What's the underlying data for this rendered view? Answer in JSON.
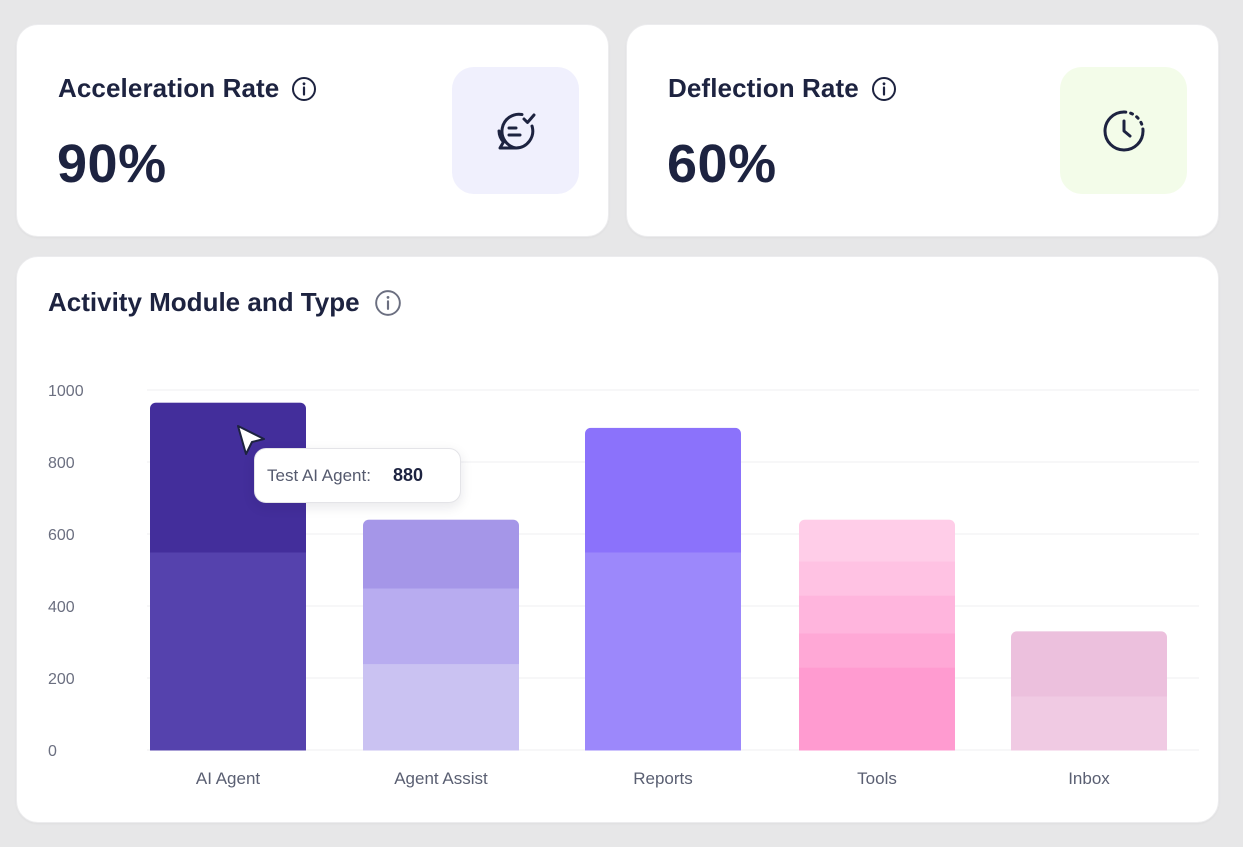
{
  "kpis": [
    {
      "title": "Acceleration Rate",
      "value": "90%",
      "icon": "chat-check-icon",
      "icon_bg": "#f0f0fd"
    },
    {
      "title": "Deflection Rate",
      "value": "60%",
      "icon": "clock-icon",
      "icon_bg": "#f3fce9"
    }
  ],
  "chart_card": {
    "title": "Activity Module and Type"
  },
  "tooltip": {
    "label": "Test AI Agent:",
    "value": "880"
  },
  "chart_data": {
    "type": "bar",
    "stacked": true,
    "categories": [
      "AI Agent",
      "Agent Assist",
      "Reports",
      "Tools",
      "Inbox"
    ],
    "yticks": [
      "0",
      "200",
      "400",
      "600",
      "800",
      "1000"
    ],
    "ylim": [
      0,
      1000
    ],
    "grid": true,
    "segments": [
      {
        "category": "AI Agent",
        "values": [
          550,
          415
        ],
        "colors": [
          "#5542ad",
          "#432e9b"
        ]
      },
      {
        "category": "Agent Assist",
        "values": [
          240,
          210,
          190
        ],
        "colors": [
          "#cac2f2",
          "#b8acf0",
          "#a596e8"
        ]
      },
      {
        "category": "Reports",
        "values": [
          550,
          345
        ],
        "colors": [
          "#9c88fb",
          "#8b72fb"
        ]
      },
      {
        "category": "Tools",
        "values": [
          230,
          95,
          105,
          95,
          115
        ],
        "colors": [
          "#ff9bd0",
          "#ffa8d6",
          "#ffb5dd",
          "#ffc2e3",
          "#ffcde8"
        ]
      },
      {
        "category": "Inbox",
        "values": [
          150,
          180
        ],
        "colors": [
          "#f0cae3",
          "#ecc0dd"
        ]
      }
    ]
  }
}
